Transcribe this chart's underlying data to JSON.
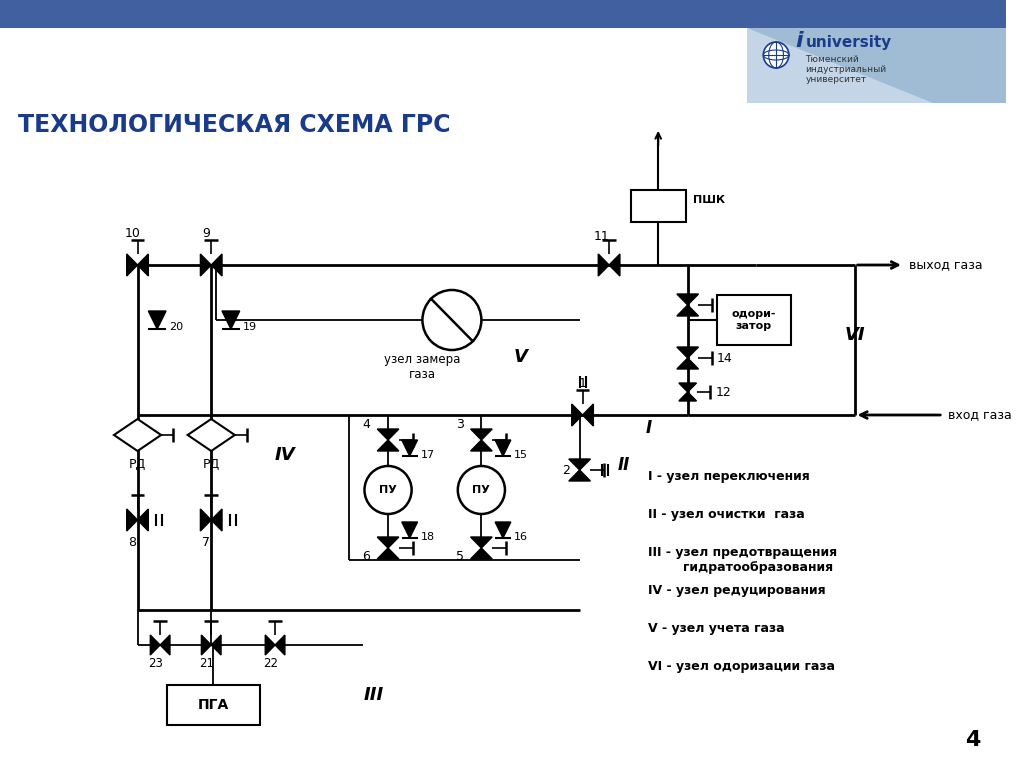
{
  "title": "ТЕХНОЛОГИЧЕСКАЯ СХЕМА ГРС",
  "title_color": "#1a3a8a",
  "title_fontsize": 17,
  "bg_color": "#ffffff",
  "header_bar_color": "#4060a0",
  "legend_items": [
    "I - узел переключения",
    "II - узел очистки  газа",
    "III - узел предотвращения\n        гидратообразования",
    "IV - узел редуцирования",
    "V - узел учета газа",
    "VI - узел одоризации газа"
  ],
  "page_num": "4"
}
